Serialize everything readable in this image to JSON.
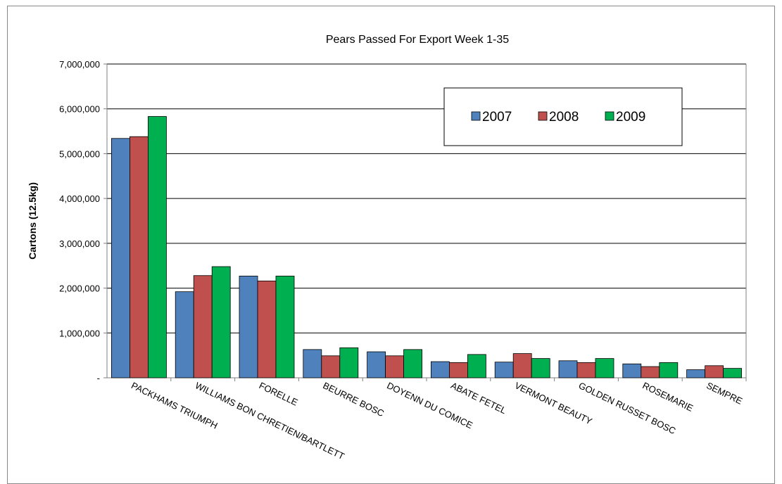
{
  "chart_data": {
    "type": "bar",
    "title": "Pears Passed For Export Week  1-35",
    "xlabel": "",
    "ylabel": "Cartons (12.5kg)",
    "ylim": [
      0,
      7000000
    ],
    "yticks": [
      0,
      1000000,
      2000000,
      3000000,
      4000000,
      5000000,
      6000000,
      7000000
    ],
    "ytick_labels": [
      "-",
      "1,000,000",
      "2,000,000",
      "3,000,000",
      "4,000,000",
      "5,000,000",
      "6,000,000",
      "7,000,000"
    ],
    "grid": true,
    "legend_position": "top-right",
    "categories": [
      "PACKHAMS TRIUMPH",
      "WILLIAMS BON CHRETIEN/BARTLETT",
      "FORELLE",
      "BEURRE BOSC",
      "DOYENN DU COMICE",
      "ABATE FETEL",
      "VERMONT BEAUTY",
      "GOLDEN RUSSET BOSC",
      "ROSEMARIE",
      "SEMPRE"
    ],
    "series": [
      {
        "name": "2007",
        "color": "#4F81BD",
        "values": [
          5340000,
          1920000,
          2270000,
          630000,
          580000,
          360000,
          350000,
          380000,
          310000,
          180000
        ]
      },
      {
        "name": "2008",
        "color": "#C0504D",
        "values": [
          5380000,
          2280000,
          2160000,
          490000,
          490000,
          340000,
          540000,
          340000,
          250000,
          270000
        ]
      },
      {
        "name": "2009",
        "color": "#00B050",
        "values": [
          5830000,
          2480000,
          2270000,
          670000,
          630000,
          520000,
          430000,
          430000,
          340000,
          210000
        ]
      }
    ]
  }
}
